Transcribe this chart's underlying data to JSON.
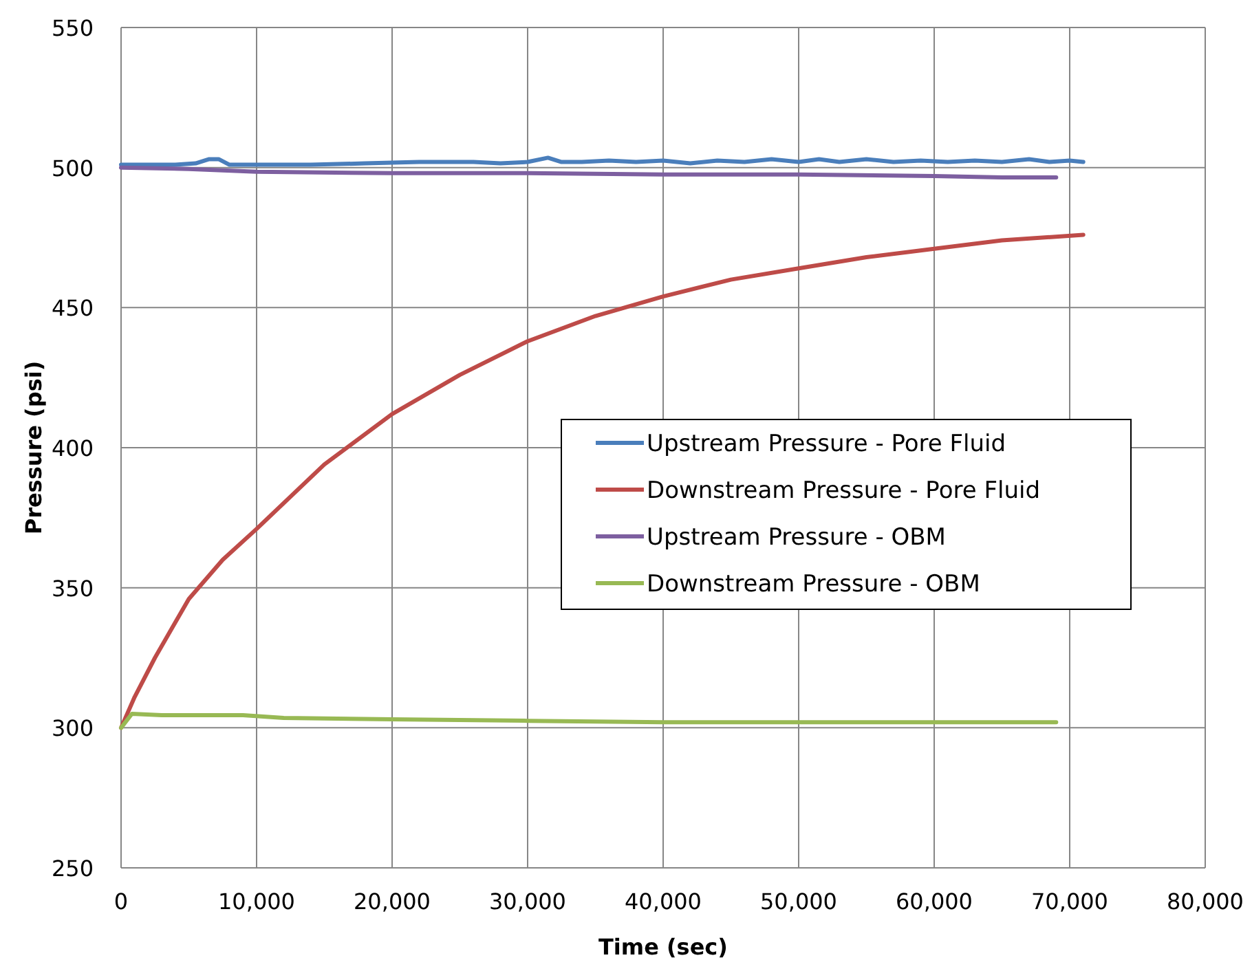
{
  "chart_data": {
    "type": "line",
    "xlabel": "Time (sec)",
    "ylabel": "Pressure (psi)",
    "xlim": [
      0,
      80000
    ],
    "xticks": [
      {
        "value": 0,
        "label": "0"
      },
      {
        "value": 10000,
        "label": "10,000"
      },
      {
        "value": 20000,
        "label": "20,000"
      },
      {
        "value": 30000,
        "label": "30,000"
      },
      {
        "value": 40000,
        "label": "40,000"
      },
      {
        "value": 50000,
        "label": "50,000"
      },
      {
        "value": 60000,
        "label": "60,000"
      },
      {
        "value": 70000,
        "label": "70,000"
      },
      {
        "value": 80000,
        "label": "80,000"
      }
    ],
    "ylim": [
      250,
      550
    ],
    "yticks": [
      250,
      300,
      350,
      400,
      450,
      500,
      550
    ],
    "grid": true,
    "legend": "right",
    "line_style": "solid",
    "marker": "none",
    "series": [
      {
        "name": "Upstream Pressure - Pore Fluid",
        "color": "#4a7ebb",
        "x": [
          0,
          2000,
          4000,
          5500,
          6500,
          7200,
          8000,
          10000,
          14000,
          18000,
          22000,
          26000,
          28000,
          30000,
          31500,
          32500,
          34000,
          36000,
          38000,
          40000,
          42000,
          44000,
          46000,
          48000,
          50000,
          51500,
          53000,
          55000,
          57000,
          59000,
          61000,
          63000,
          65000,
          67000,
          68500,
          70000,
          71000
        ],
        "values": [
          501,
          501,
          501,
          501.5,
          503,
          503,
          501,
          501,
          501,
          501.5,
          502,
          502,
          501.5,
          502,
          503.5,
          502,
          502,
          502.5,
          502,
          502.5,
          501.5,
          502.5,
          502,
          503,
          502,
          503,
          502,
          503,
          502,
          502.5,
          502,
          502.5,
          502,
          503,
          502,
          502.5,
          502
        ]
      },
      {
        "name": "Downstream Pressure - Pore Fluid",
        "color": "#be4b48",
        "x": [
          0,
          1000,
          2500,
          5000,
          7500,
          10000,
          15000,
          20000,
          25000,
          30000,
          35000,
          40000,
          45000,
          50000,
          55000,
          60000,
          65000,
          71000
        ],
        "values": [
          300,
          311,
          325,
          346,
          360,
          371,
          394,
          412,
          426,
          438,
          447,
          454,
          460,
          464,
          468,
          471,
          474,
          476
        ]
      },
      {
        "name": "Upstream Pressure - OBM",
        "color": "#7d5fa0",
        "x": [
          0,
          5000,
          10000,
          20000,
          30000,
          40000,
          50000,
          60000,
          65000,
          69000
        ],
        "values": [
          500,
          499.5,
          498.5,
          498,
          498,
          497.5,
          497.5,
          497,
          496.5,
          496.5
        ]
      },
      {
        "name": "Downstream Pressure - OBM",
        "color": "#98b954",
        "x": [
          0,
          800,
          3000,
          6000,
          9000,
          12000,
          20000,
          30000,
          40000,
          50000,
          60000,
          69000
        ],
        "values": [
          300,
          305,
          304.5,
          304.5,
          304.5,
          303.5,
          303,
          302.5,
          302,
          302,
          302,
          302
        ]
      }
    ]
  }
}
